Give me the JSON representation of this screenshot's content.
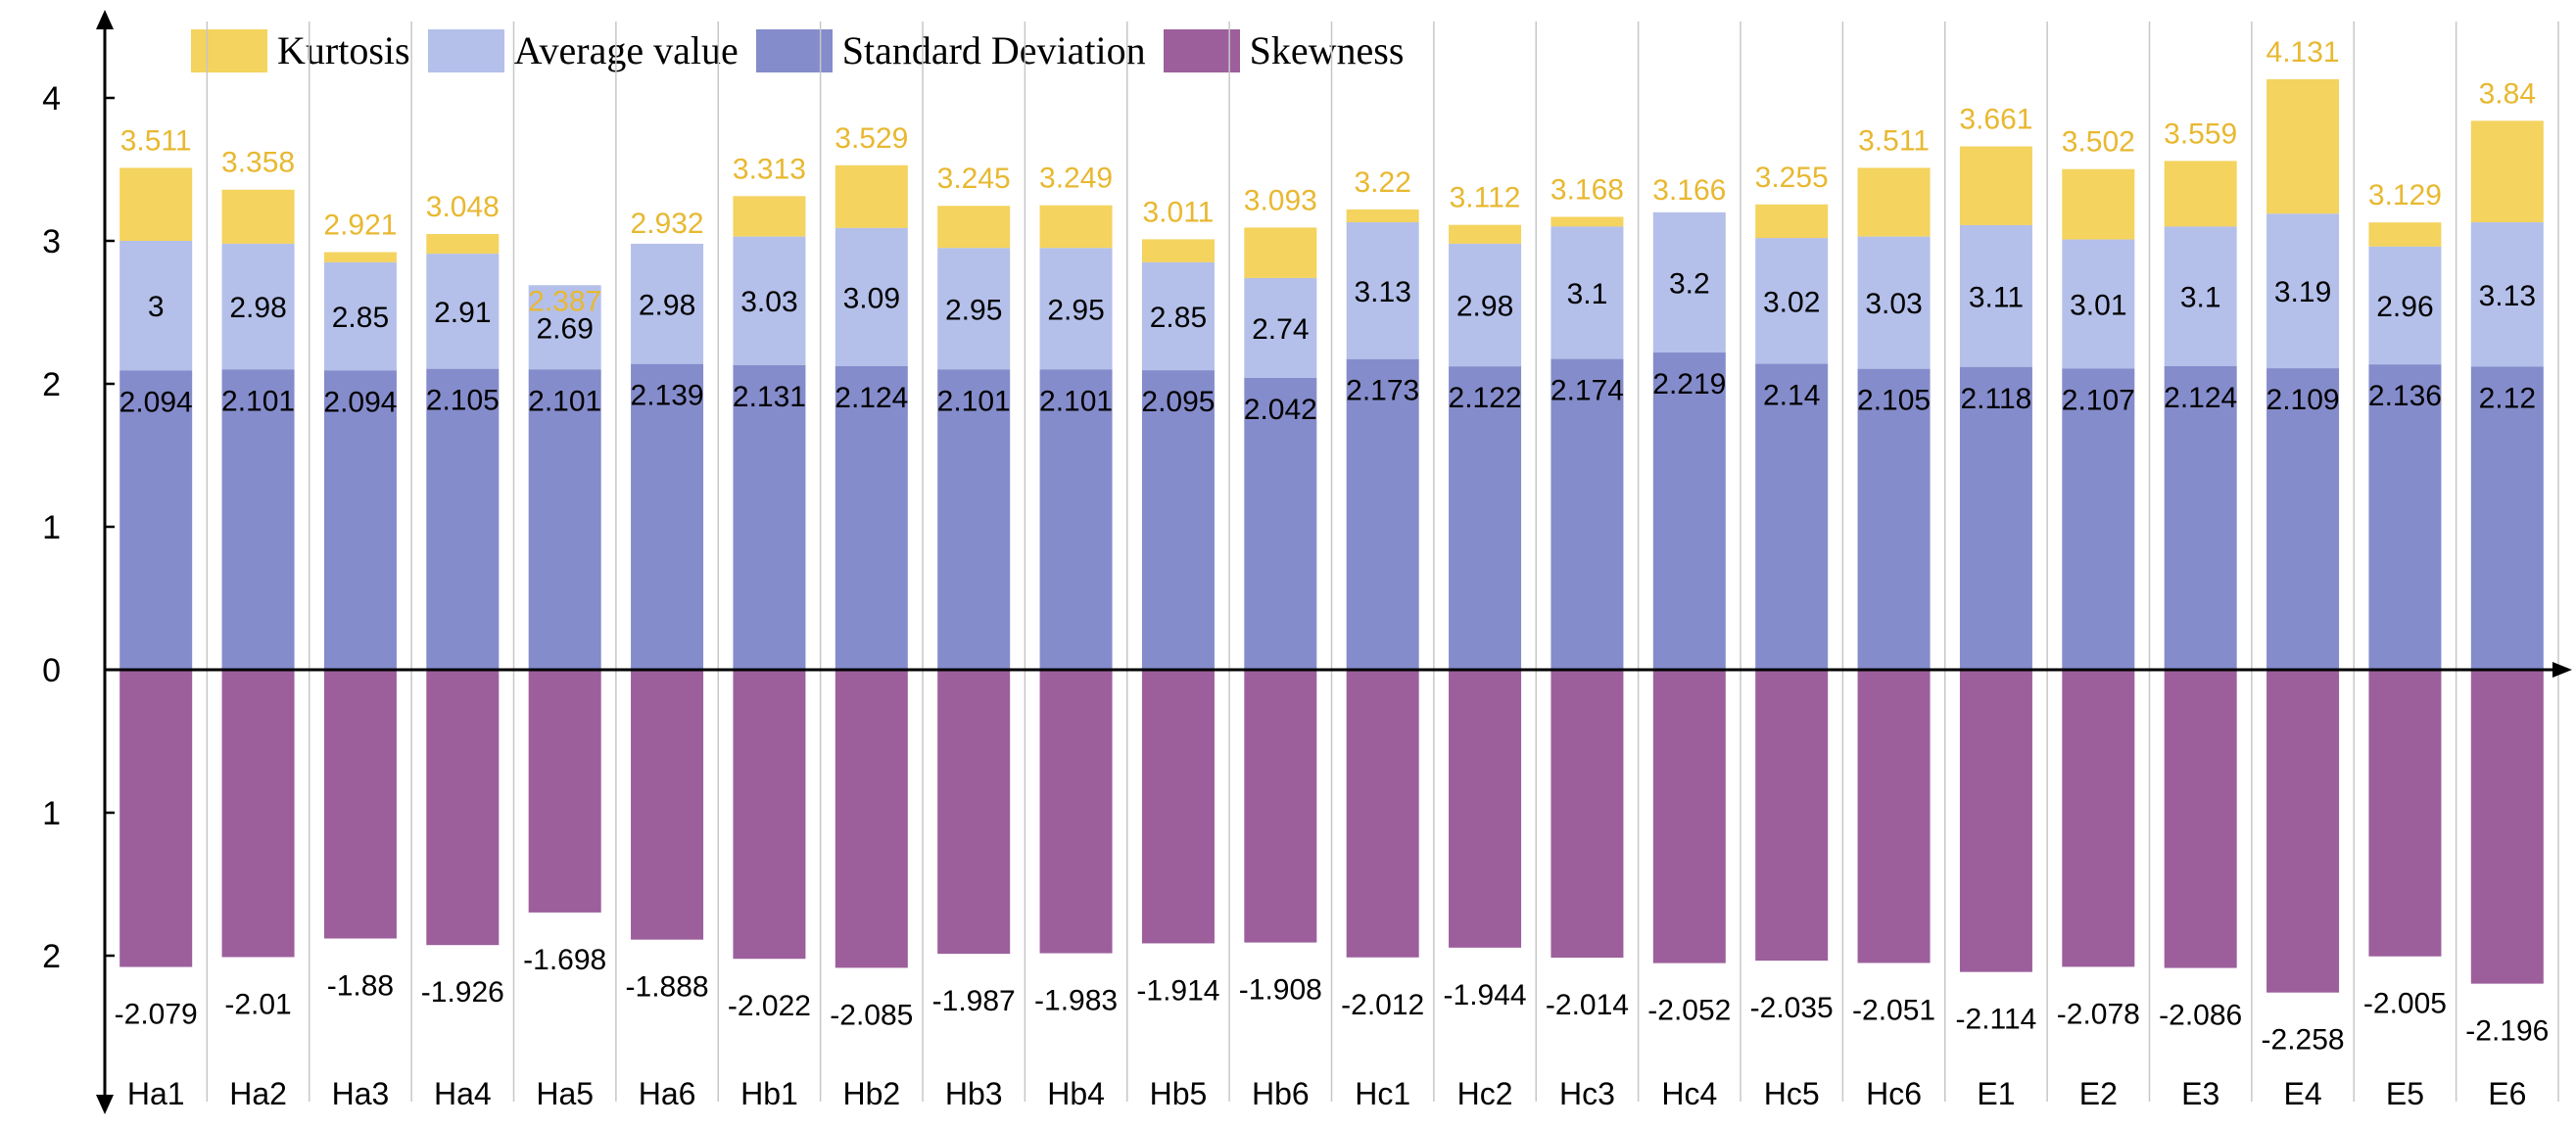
{
  "chart_data": {
    "type": "bar",
    "categories": [
      "Ha1",
      "Ha2",
      "Ha3",
      "Ha4",
      "Ha5",
      "Ha6",
      "Hb1",
      "Hb2",
      "Hb3",
      "Hb4",
      "Hb5",
      "Hb6",
      "Hc1",
      "Hc2",
      "Hc3",
      "Hc4",
      "Hc5",
      "Hc6",
      "E1",
      "E2",
      "E3",
      "E4",
      "E5",
      "E6"
    ],
    "series": [
      {
        "name": "Kurtosis",
        "color": "#f4d35e",
        "label_color": "#e8b830",
        "values": [
          3.511,
          3.358,
          2.921,
          3.048,
          2.387,
          2.932,
          3.313,
          3.529,
          3.245,
          3.249,
          3.011,
          3.093,
          3.22,
          3.112,
          3.168,
          3.166,
          3.255,
          3.511,
          3.661,
          3.502,
          3.559,
          4.131,
          3.129,
          3.84
        ],
        "labels": [
          "3.511",
          "3.358",
          "2.921",
          "3.048",
          "2.387",
          "2.932",
          "3.313",
          "3.529",
          "3.245",
          "3.249",
          "3.011",
          "3.093",
          "3.22",
          "3.112",
          "3.168",
          "3.166",
          "3.255",
          "3.511",
          "3.661",
          "3.502",
          "3.559",
          "4.131",
          "3.129",
          "3.84"
        ]
      },
      {
        "name": "Average value",
        "color": "#b4c0ea",
        "label_color": "#000000",
        "values": [
          3,
          2.98,
          2.85,
          2.91,
          2.69,
          2.98,
          3.03,
          3.09,
          2.95,
          2.95,
          2.85,
          2.74,
          3.13,
          2.98,
          3.1,
          3.2,
          3.02,
          3.03,
          3.11,
          3.01,
          3.1,
          3.19,
          2.96,
          3.13
        ],
        "labels": [
          "3",
          "2.98",
          "2.85",
          "2.91",
          "2.69",
          "2.98",
          "3.03",
          "3.09",
          "2.95",
          "2.95",
          "2.85",
          "2.74",
          "3.13",
          "2.98",
          "3.1",
          "3.2",
          "3.02",
          "3.03",
          "3.11",
          "3.01",
          "3.1",
          "3.19",
          "2.96",
          "3.13"
        ]
      },
      {
        "name": "Standard Deviation",
        "color": "#858ccb",
        "label_color": "#000000",
        "values": [
          2.094,
          2.101,
          2.094,
          2.105,
          2.101,
          2.139,
          2.131,
          2.124,
          2.101,
          2.101,
          2.095,
          2.042,
          2.173,
          2.122,
          2.174,
          2.219,
          2.14,
          2.105,
          2.118,
          2.107,
          2.124,
          2.109,
          2.136,
          2.12
        ],
        "labels": [
          "2.094",
          "2.101",
          "2.094",
          "2.105",
          "2.101",
          "2.139",
          "2.131",
          "2.124",
          "2.101",
          "2.101",
          "2.095",
          "2.042",
          "2.173",
          "2.122",
          "2.174",
          "2.219",
          "2.14",
          "2.105",
          "2.118",
          "2.107",
          "2.124",
          "2.109",
          "2.136",
          "2.12"
        ]
      },
      {
        "name": "Skewness",
        "color": "#9c5f9c",
        "label_color": "#000000",
        "values": [
          -2.079,
          -2.01,
          -1.88,
          -1.926,
          -1.698,
          -1.888,
          -2.022,
          -2.085,
          -1.987,
          -1.983,
          -1.914,
          -1.908,
          -2.012,
          -1.944,
          -2.014,
          -2.052,
          -2.035,
          -2.051,
          -2.114,
          -2.078,
          -2.086,
          -2.258,
          -2.005,
          -2.196
        ],
        "labels": [
          "-2.079",
          "-2.01",
          "-1.88",
          "-1.926",
          "-1.698",
          "-1.888",
          "-2.022",
          "-2.085",
          "-1.987",
          "-1.983",
          "-1.914",
          "-1.908",
          "-2.012",
          "-1.944",
          "-2.014",
          "-2.052",
          "-2.035",
          "-2.051",
          "-2.114",
          "-2.078",
          "-2.086",
          "-2.258",
          "-2.005",
          "-2.196"
        ]
      }
    ],
    "y_ticks": [
      {
        "value": 4,
        "label": "4"
      },
      {
        "value": 3,
        "label": "3"
      },
      {
        "value": 2,
        "label": "2"
      },
      {
        "value": 1,
        "label": "1"
      },
      {
        "value": 0,
        "label": "0"
      },
      {
        "value": -1,
        "label": "1"
      },
      {
        "value": -2,
        "label": "2"
      }
    ],
    "ylim": [
      -3,
      4.5
    ],
    "legend": {
      "placement": "top-left",
      "entries": [
        "Kurtosis",
        "Average value",
        "Standard Deviation",
        "Skewness"
      ]
    },
    "grid": false,
    "title": "",
    "xlabel": "",
    "ylabel": ""
  }
}
